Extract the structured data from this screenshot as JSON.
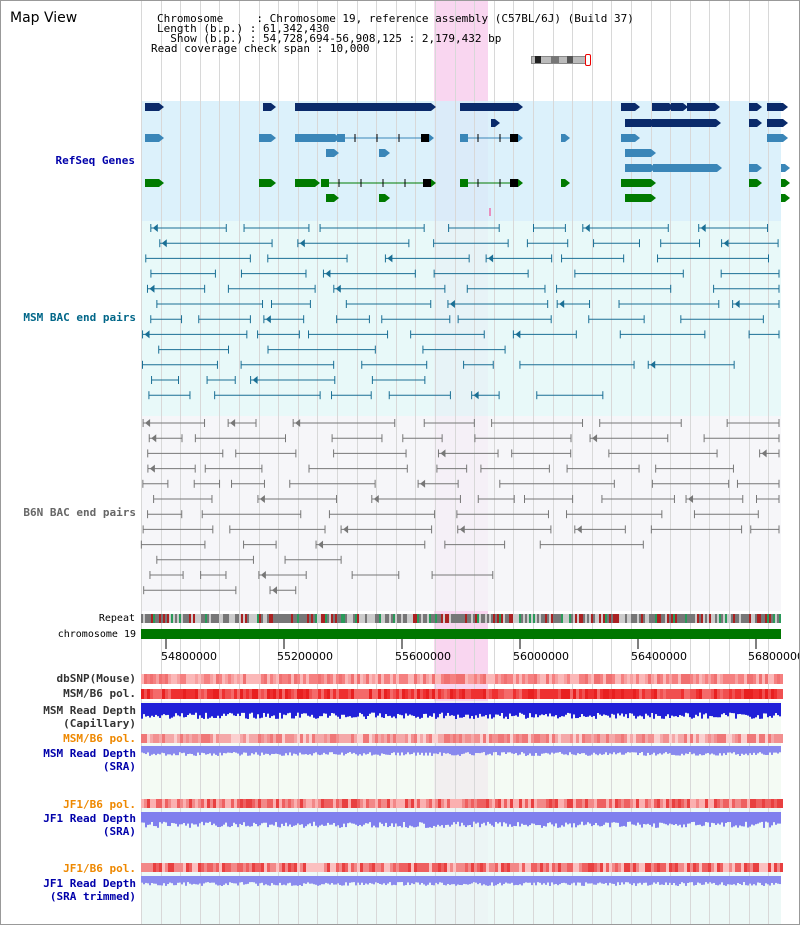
{
  "title": "Map View",
  "header": {
    "chromosome_label": "Chromosome     ",
    "chromosome_value": ": Chromosome 19, reference assembly (C57BL/6J) (Build 37)",
    "length_label": "Length (b.p.) ",
    "length_value": ": 61,342,430",
    "show_label": "  Show (b.p.) ",
    "show_value": ": 54,728,694-56,908,125 : 2,179,432 bp",
    "coverage_label": "Read coverage check span",
    "coverage_value": ": 10,000"
  },
  "tracks": {
    "refseq": {
      "label": "RefSeq Genes",
      "color": "#0000aa"
    },
    "msm_bac": {
      "label": "MSM BAC end pairs",
      "color": "#006688"
    },
    "b6n_bac": {
      "label": "B6N BAC end pairs",
      "color": "#666666"
    },
    "repeat": {
      "label": "Repeat"
    },
    "chromosome": {
      "label": "chromosome 19"
    },
    "dbsnp": {
      "label": "dbSNP(Mouse)"
    },
    "msm_pol": {
      "label": "MSM/B6 pol."
    },
    "msm_depth_cap": {
      "label": "MSM Read Depth\n(Capillary)"
    },
    "msm_pol2": {
      "label": "MSM/B6 pol.",
      "color": "#ee8800"
    },
    "msm_depth_sra": {
      "label": "MSM Read Depth\n(SRA)",
      "color": "#0000aa"
    },
    "jf1_pol": {
      "label": "JF1/B6 pol.",
      "color": "#ee8800"
    },
    "jf1_depth_sra": {
      "label": "JF1 Read Depth\n(SRA)",
      "color": "#0000aa"
    },
    "jf1_pol2": {
      "label": "JF1/B6 pol.",
      "color": "#ee8800"
    },
    "jf1_depth_trim": {
      "label": "JF1 Read Depth\n(SRA trimmed)",
      "color": "#0000aa"
    }
  },
  "axis_ticks": [
    "54800000",
    "55200000",
    "55600000",
    "56000000",
    "56400000",
    "56800000"
  ],
  "colors": {
    "gene_dark": "#0a2a6a",
    "gene_mid": "#3a86b8",
    "gene_green": "#007a00",
    "highlight": "#f9d6f0",
    "chromosome_bar": "#007700"
  }
}
